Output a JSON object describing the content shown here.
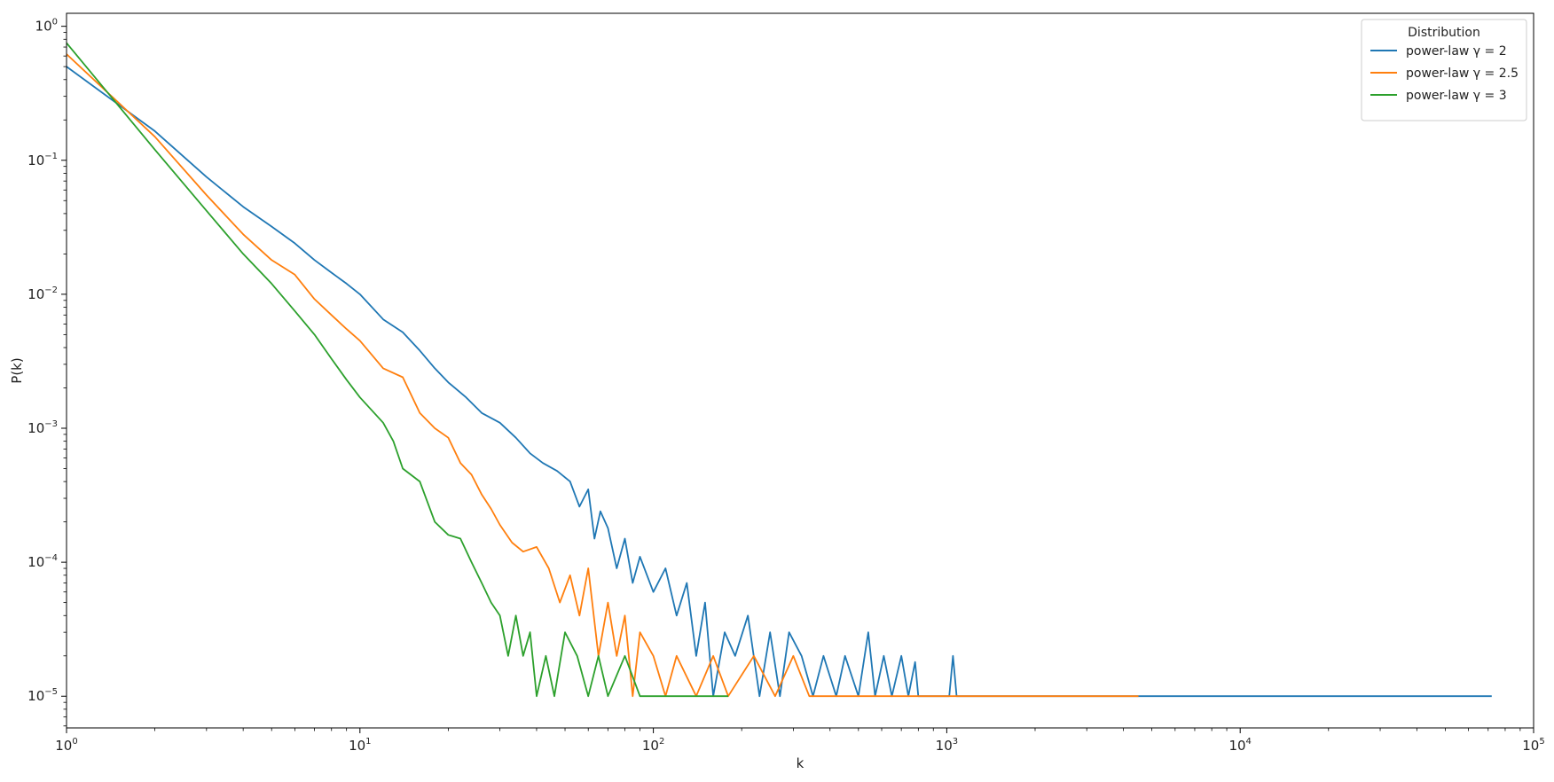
{
  "chart_data": {
    "type": "line",
    "title": "",
    "xlabel": "k",
    "ylabel": "P(k)",
    "xscale": "log",
    "yscale": "log",
    "xlim": [
      1,
      100000
    ],
    "ylim": [
      5.8e-06,
      1.25
    ],
    "grid": false,
    "x_ticks": [
      {
        "value": 1,
        "base": "10",
        "exp": "0"
      },
      {
        "value": 10,
        "base": "10",
        "exp": "1"
      },
      {
        "value": 100,
        "base": "10",
        "exp": "2"
      },
      {
        "value": 1000,
        "base": "10",
        "exp": "3"
      },
      {
        "value": 10000,
        "base": "10",
        "exp": "4"
      },
      {
        "value": 100000,
        "base": "10",
        "exp": "5"
      }
    ],
    "y_ticks": [
      {
        "value": 1e-05,
        "base": "10",
        "exp": "−5"
      },
      {
        "value": 0.0001,
        "base": "10",
        "exp": "−4"
      },
      {
        "value": 0.001,
        "base": "10",
        "exp": "−3"
      },
      {
        "value": 0.01,
        "base": "10",
        "exp": "−2"
      },
      {
        "value": 0.1,
        "base": "10",
        "exp": "−1"
      },
      {
        "value": 1,
        "base": "10",
        "exp": "0"
      }
    ],
    "legend": {
      "title": "Distribution",
      "placement": "top-right"
    },
    "series": [
      {
        "name": "power-law γ = 2",
        "color": "#1f77b4",
        "points": [
          [
            1,
            0.5
          ],
          [
            2,
            0.165
          ],
          [
            3,
            0.075
          ],
          [
            4,
            0.045
          ],
          [
            5,
            0.032
          ],
          [
            6,
            0.024
          ],
          [
            7,
            0.018
          ],
          [
            8,
            0.0145
          ],
          [
            9,
            0.012
          ],
          [
            10,
            0.01
          ],
          [
            12,
            0.0065
          ],
          [
            14,
            0.0052
          ],
          [
            16,
            0.0038
          ],
          [
            18,
            0.0028
          ],
          [
            20,
            0.0022
          ],
          [
            23,
            0.0017
          ],
          [
            26,
            0.0013
          ],
          [
            30,
            0.0011
          ],
          [
            34,
            0.00085
          ],
          [
            38,
            0.00065
          ],
          [
            42,
            0.00055
          ],
          [
            47,
            0.00048
          ],
          [
            52,
            0.0004
          ],
          [
            56,
            0.00026
          ],
          [
            60,
            0.00035
          ],
          [
            63,
            0.00015
          ],
          [
            66,
            0.00024
          ],
          [
            70,
            0.00018
          ],
          [
            75,
            9e-05
          ],
          [
            80,
            0.00015
          ],
          [
            85,
            7e-05
          ],
          [
            90,
            0.00011
          ],
          [
            100,
            6e-05
          ],
          [
            110,
            9e-05
          ],
          [
            120,
            4e-05
          ],
          [
            130,
            7e-05
          ],
          [
            140,
            2e-05
          ],
          [
            150,
            5e-05
          ],
          [
            160,
            1e-05
          ],
          [
            175,
            3e-05
          ],
          [
            190,
            2e-05
          ],
          [
            210,
            4e-05
          ],
          [
            230,
            1e-05
          ],
          [
            250,
            3e-05
          ],
          [
            270,
            1e-05
          ],
          [
            290,
            3e-05
          ],
          [
            320,
            2e-05
          ],
          [
            350,
            1e-05
          ],
          [
            380,
            2e-05
          ],
          [
            420,
            1e-05
          ],
          [
            450,
            2e-05
          ],
          [
            500,
            1e-05
          ],
          [
            540,
            3e-05
          ],
          [
            570,
            1e-05
          ],
          [
            610,
            2e-05
          ],
          [
            650,
            1e-05
          ],
          [
            700,
            2e-05
          ],
          [
            740,
            1e-05
          ],
          [
            780,
            1.8e-05
          ],
          [
            800,
            1e-05
          ],
          [
            1020,
            1e-05
          ],
          [
            1050,
            2e-05
          ],
          [
            1080,
            1e-05
          ],
          [
            72000,
            1e-05
          ]
        ]
      },
      {
        "name": "power-law γ = 2.5",
        "color": "#ff7f0e",
        "points": [
          [
            1,
            0.62
          ],
          [
            2,
            0.15
          ],
          [
            3,
            0.055
          ],
          [
            4,
            0.028
          ],
          [
            5,
            0.018
          ],
          [
            6,
            0.014
          ],
          [
            7,
            0.0092
          ],
          [
            8,
            0.007
          ],
          [
            9,
            0.0055
          ],
          [
            10,
            0.0045
          ],
          [
            12,
            0.0028
          ],
          [
            14,
            0.0024
          ],
          [
            16,
            0.0013
          ],
          [
            18,
            0.001
          ],
          [
            20,
            0.00085
          ],
          [
            22,
            0.00055
          ],
          [
            24,
            0.00045
          ],
          [
            26,
            0.00032
          ],
          [
            28,
            0.00025
          ],
          [
            30,
            0.00019
          ],
          [
            33,
            0.00014
          ],
          [
            36,
            0.00012
          ],
          [
            40,
            0.00013
          ],
          [
            44,
            9e-05
          ],
          [
            48,
            5e-05
          ],
          [
            52,
            8e-05
          ],
          [
            56,
            4e-05
          ],
          [
            60,
            9e-05
          ],
          [
            65,
            2e-05
          ],
          [
            70,
            5e-05
          ],
          [
            75,
            2e-05
          ],
          [
            80,
            4e-05
          ],
          [
            85,
            1e-05
          ],
          [
            90,
            3e-05
          ],
          [
            100,
            2e-05
          ],
          [
            110,
            1e-05
          ],
          [
            120,
            2e-05
          ],
          [
            140,
            1e-05
          ],
          [
            160,
            2e-05
          ],
          [
            180,
            1e-05
          ],
          [
            220,
            2e-05
          ],
          [
            260,
            1e-05
          ],
          [
            300,
            2e-05
          ],
          [
            340,
            1e-05
          ],
          [
            4500,
            1e-05
          ]
        ]
      },
      {
        "name": "power-law γ = 3",
        "color": "#2ca02c",
        "points": [
          [
            1,
            0.75
          ],
          [
            2,
            0.12
          ],
          [
            3,
            0.042
          ],
          [
            4,
            0.02
          ],
          [
            5,
            0.012
          ],
          [
            6,
            0.0075
          ],
          [
            7,
            0.005
          ],
          [
            8,
            0.0033
          ],
          [
            9,
            0.0023
          ],
          [
            10,
            0.0017
          ],
          [
            12,
            0.0011
          ],
          [
            13,
            0.0008
          ],
          [
            14,
            0.0005
          ],
          [
            16,
            0.0004
          ],
          [
            18,
            0.0002
          ],
          [
            20,
            0.00016
          ],
          [
            22,
            0.00015
          ],
          [
            24,
            0.0001
          ],
          [
            26,
            7e-05
          ],
          [
            28,
            5e-05
          ],
          [
            30,
            4e-05
          ],
          [
            32,
            2e-05
          ],
          [
            34,
            4e-05
          ],
          [
            36,
            2e-05
          ],
          [
            38,
            3e-05
          ],
          [
            40,
            1e-05
          ],
          [
            43,
            2e-05
          ],
          [
            46,
            1e-05
          ],
          [
            50,
            3e-05
          ],
          [
            55,
            2e-05
          ],
          [
            60,
            1e-05
          ],
          [
            65,
            2e-05
          ],
          [
            70,
            1e-05
          ],
          [
            80,
            2e-05
          ],
          [
            90,
            1e-05
          ],
          [
            180,
            1e-05
          ]
        ]
      }
    ]
  }
}
